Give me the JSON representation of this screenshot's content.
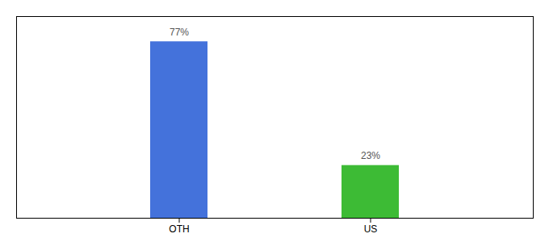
{
  "chart_data": {
    "type": "bar",
    "categories": [
      "OTH",
      "US"
    ],
    "values": [
      77,
      23
    ],
    "value_labels": [
      "77%",
      "23%"
    ],
    "colors": [
      "#4472db",
      "#3dbb35"
    ],
    "ylim": [
      0,
      88
    ],
    "yticks": [],
    "grid": false,
    "data_labels": true,
    "tick_labels": "x"
  }
}
